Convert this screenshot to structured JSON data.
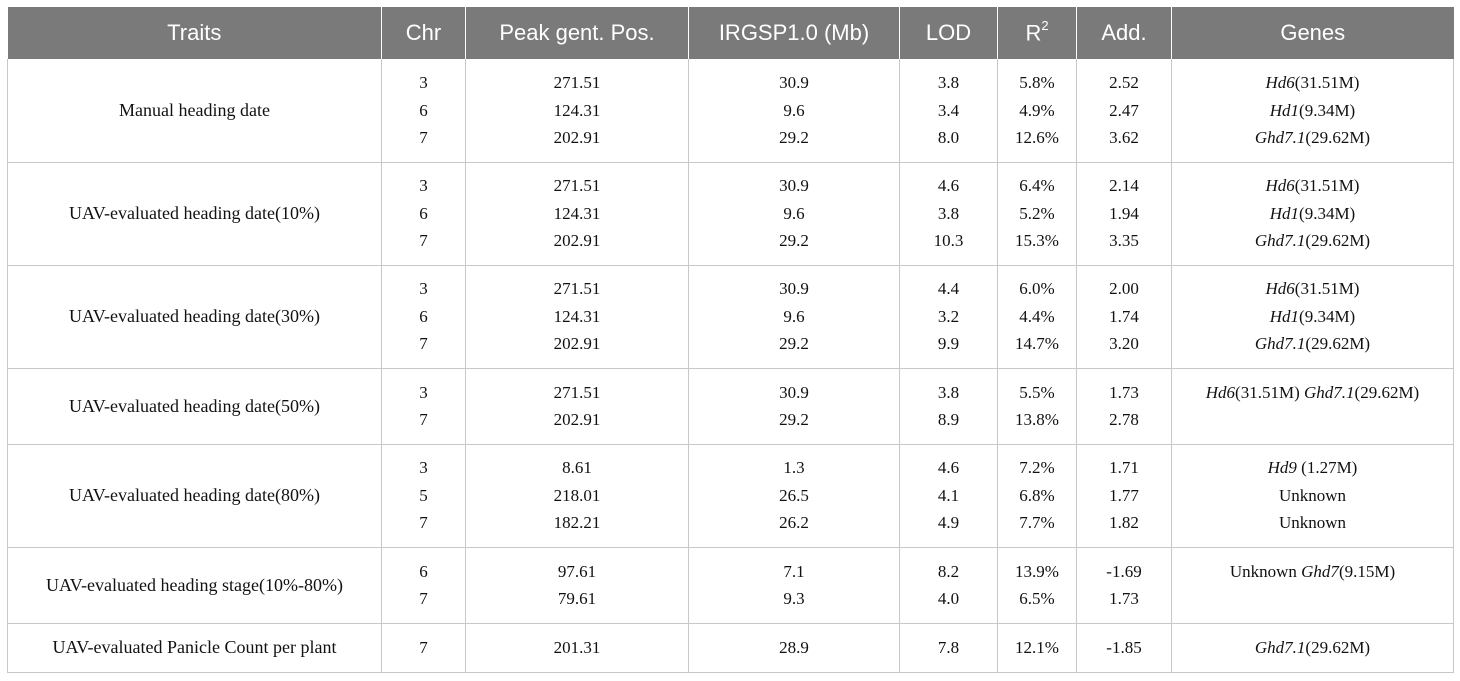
{
  "table": {
    "headers": [
      "Traits",
      "Chr",
      "Peak gent. Pos.",
      "IRGSP1.0 (Mb)",
      "LOD",
      "R",
      "Add.",
      "Genes"
    ],
    "r_superscript": "2",
    "groups": [
      {
        "trait": "Manual heading date",
        "rows": [
          {
            "chr": "3",
            "pos": "271.51",
            "mb": "30.9",
            "lod": "3.8",
            "r2": "5.8%",
            "add": "2.52",
            "genes": [
              {
                "name": "Hd6",
                "loc": "(31.51M)"
              }
            ]
          },
          {
            "chr": "6",
            "pos": "124.31",
            "mb": "9.6",
            "lod": "3.4",
            "r2": "4.9%",
            "add": "2.47",
            "genes": [
              {
                "name": "Hd1",
                "loc": "(9.34M)"
              }
            ]
          },
          {
            "chr": "7",
            "pos": "202.91",
            "mb": "29.2",
            "lod": "8.0",
            "r2": "12.6%",
            "add": "3.62",
            "genes": [
              {
                "name": "Ghd7.1",
                "loc": "(29.62M)"
              }
            ]
          }
        ]
      },
      {
        "trait": "UAV-evaluated heading date(10%)",
        "rows": [
          {
            "chr": "3",
            "pos": "271.51",
            "mb": "30.9",
            "lod": "4.6",
            "r2": "6.4%",
            "add": "2.14",
            "genes": [
              {
                "name": "Hd6",
                "loc": "(31.51M)"
              }
            ]
          },
          {
            "chr": "6",
            "pos": "124.31",
            "mb": "9.6",
            "lod": "3.8",
            "r2": "5.2%",
            "add": "1.94",
            "genes": [
              {
                "name": "Hd1",
                "loc": "(9.34M)"
              }
            ]
          },
          {
            "chr": "7",
            "pos": "202.91",
            "mb": "29.2",
            "lod": "10.3",
            "r2": "15.3%",
            "add": "3.35",
            "genes": [
              {
                "name": "Ghd7.1",
                "loc": "(29.62M)"
              }
            ]
          }
        ]
      },
      {
        "trait": "UAV-evaluated heading date(30%)",
        "rows": [
          {
            "chr": "3",
            "pos": "271.51",
            "mb": "30.9",
            "lod": "4.4",
            "r2": "6.0%",
            "add": "2.00",
            "genes": [
              {
                "name": "Hd6",
                "loc": "(31.51M)"
              }
            ]
          },
          {
            "chr": "6",
            "pos": "124.31",
            "mb": "9.6",
            "lod": "3.2",
            "r2": "4.4%",
            "add": "1.74",
            "genes": [
              {
                "name": "Hd1",
                "loc": "(9.34M)"
              }
            ]
          },
          {
            "chr": "7",
            "pos": "202.91",
            "mb": "29.2",
            "lod": "9.9",
            "r2": "14.7%",
            "add": "3.20",
            "genes": [
              {
                "name": "Ghd7.1",
                "loc": "(29.62M)"
              }
            ]
          }
        ]
      },
      {
        "trait": "UAV-evaluated heading date(50%)",
        "rows": [
          {
            "chr": "3",
            "pos": "271.51",
            "mb": "30.9",
            "lod": "3.8",
            "r2": "5.5%",
            "add": "1.73",
            "genes": [
              {
                "name": "Hd6",
                "loc": "(31.51M) "
              },
              {
                "name": "Ghd7.1",
                "loc": "(29.62M)"
              }
            ]
          },
          {
            "chr": "7",
            "pos": "202.91",
            "mb": "29.2",
            "lod": "8.9",
            "r2": "13.8%",
            "add": "2.78",
            "genes": []
          }
        ]
      },
      {
        "trait": "UAV-evaluated heading date(80%)",
        "rows": [
          {
            "chr": "3",
            "pos": "8.61",
            "mb": "1.3",
            "lod": "4.6",
            "r2": "7.2%",
            "add": "1.71",
            "genes": [
              {
                "name": "Hd9",
                "loc": " (1.27M)"
              }
            ]
          },
          {
            "chr": "5",
            "pos": "218.01",
            "mb": "26.5",
            "lod": "4.1",
            "r2": "6.8%",
            "add": "1.77",
            "genes": [
              {
                "name": "",
                "loc": "Unknown"
              }
            ]
          },
          {
            "chr": "7",
            "pos": "182.21",
            "mb": "26.2",
            "lod": "4.9",
            "r2": "7.7%",
            "add": "1.82",
            "genes": [
              {
                "name": "",
                "loc": "Unknown"
              }
            ]
          }
        ]
      },
      {
        "trait": "UAV-evaluated heading stage(10%-80%)",
        "rows": [
          {
            "chr": "6",
            "pos": "97.61",
            "mb": "7.1",
            "lod": "8.2",
            "r2": "13.9%",
            "add": "-1.69",
            "genes": [
              {
                "name": "",
                "loc": "Unknown "
              },
              {
                "name": "Ghd7",
                "loc": "(9.15M)"
              }
            ]
          },
          {
            "chr": "7",
            "pos": "79.61",
            "mb": "9.3",
            "lod": "4.0",
            "r2": "6.5%",
            "add": "1.73",
            "genes": []
          }
        ]
      },
      {
        "trait": "UAV-evaluated Panicle Count per plant",
        "rows": [
          {
            "chr": "7",
            "pos": "201.31",
            "mb": "28.9",
            "lod": "7.8",
            "r2": "12.1%",
            "add": "-1.85",
            "genes": [
              {
                "name": "Ghd7.1",
                "loc": "(29.62M)"
              }
            ]
          }
        ]
      }
    ]
  }
}
